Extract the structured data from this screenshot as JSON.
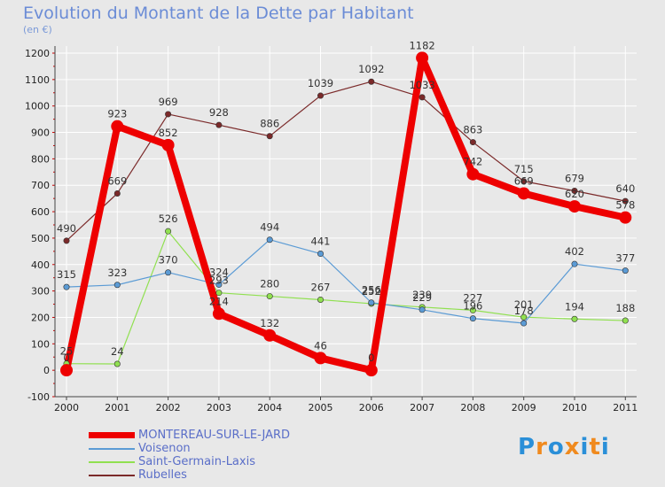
{
  "chart_data": {
    "type": "line",
    "title": "Evolution du Montant de la Dette par Habitant",
    "subtitle": "(en €)",
    "xlabel": "",
    "ylabel": "",
    "categories": [
      "2000",
      "2001",
      "2002",
      "2003",
      "2004",
      "2005",
      "2006",
      "2007",
      "2008",
      "2009",
      "2010",
      "2011"
    ],
    "ylim": [
      -100,
      1200
    ],
    "yticks": [
      -100,
      0,
      100,
      200,
      300,
      400,
      500,
      600,
      700,
      800,
      900,
      1000,
      1100,
      1200
    ],
    "grid": true,
    "legend_position": "bottom-left",
    "series": [
      {
        "name": "MONTEREAU-SUR-LE-JARD",
        "color": "#ee0000",
        "values": [
          0,
          923,
          852,
          214,
          132,
          46,
          0,
          1182,
          742,
          669,
          620,
          578
        ]
      },
      {
        "name": "Voisenon",
        "color": "#5b9bd5",
        "values": [
          315,
          323,
          370,
          324,
          494,
          441,
          256,
          229,
          196,
          178,
          402,
          377
        ]
      },
      {
        "name": "Saint-Germain-Laxis",
        "color": "#90e050",
        "values": [
          25,
          24,
          526,
          293,
          280,
          267,
          252,
          239,
          227,
          201,
          194,
          188
        ]
      },
      {
        "name": "Rubelles",
        "color": "#7b2a2a",
        "values": [
          490,
          669,
          969,
          928,
          886,
          1039,
          1092,
          1033,
          863,
          715,
          679,
          640
        ]
      }
    ]
  },
  "logo": {
    "letters": [
      "P",
      "r",
      "o",
      "x",
      "i",
      "t",
      "i"
    ],
    "colors": [
      "#2a8fd8",
      "#f08a1e",
      "#2a8fd8",
      "#f08a1e",
      "#2a8fd8",
      "#f08a1e",
      "#2a8fd8"
    ]
  }
}
